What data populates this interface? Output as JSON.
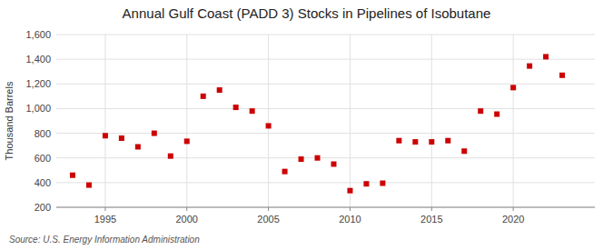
{
  "chart_data": {
    "type": "scatter",
    "title": "Annual Gulf Coast (PADD 3) Stocks in Pipelines of Isobutane",
    "ylabel": "Thousand Barrels",
    "source": "Source: U.S. Energy Information Administration",
    "x": [
      1993,
      1994,
      1995,
      1996,
      1997,
      1998,
      1999,
      2000,
      2001,
      2002,
      2003,
      2004,
      2005,
      2006,
      2007,
      2008,
      2009,
      2010,
      2011,
      2012,
      2013,
      2014,
      2015,
      2016,
      2017,
      2018,
      2019,
      2020,
      2021,
      2022,
      2023
    ],
    "values": [
      460,
      380,
      780,
      760,
      690,
      800,
      615,
      735,
      1100,
      1150,
      1010,
      980,
      860,
      490,
      590,
      600,
      550,
      335,
      390,
      395,
      740,
      730,
      730,
      740,
      655,
      980,
      955,
      1170,
      1345,
      1420,
      1270
    ],
    "color": "#cc0000",
    "marker": "square",
    "xlim": [
      1992,
      2025
    ],
    "xticks": [
      1995,
      2000,
      2005,
      2010,
      2015,
      2020
    ],
    "ylim": [
      200,
      1600
    ],
    "yticks": [
      200,
      400,
      600,
      800,
      {
        "value": 1000,
        "label": "1,000"
      },
      {
        "value": 1200,
        "label": "1,200"
      },
      {
        "value": 1400,
        "label": "1,400"
      },
      {
        "value": 1600,
        "label": "1,600"
      }
    ],
    "grid": true
  }
}
